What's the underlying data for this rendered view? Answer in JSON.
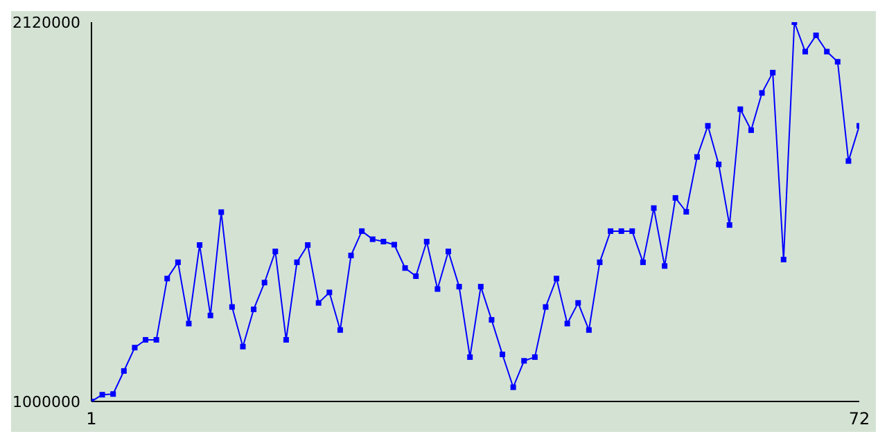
{
  "chart_data": {
    "type": "line",
    "x": [
      1,
      2,
      3,
      4,
      5,
      6,
      7,
      8,
      9,
      10,
      11,
      12,
      13,
      14,
      15,
      16,
      17,
      18,
      19,
      20,
      21,
      22,
      23,
      24,
      25,
      26,
      27,
      28,
      29,
      30,
      31,
      32,
      33,
      34,
      35,
      36,
      37,
      38,
      39,
      40,
      41,
      42,
      43,
      44,
      45,
      46,
      47,
      48,
      49,
      50,
      51,
      52,
      53,
      54,
      55,
      56,
      57,
      58,
      59,
      60,
      61,
      62,
      63,
      64,
      65,
      66,
      67,
      68,
      69,
      70,
      71,
      72
    ],
    "series": [
      {
        "color": "#0000ff",
        "values": [
          1000000,
          1020000,
          1022000,
          1090000,
          1159000,
          1182000,
          1182000,
          1363000,
          1411000,
          1230000,
          1462000,
          1254000,
          1559000,
          1279000,
          1162000,
          1272000,
          1351000,
          1443000,
          1182000,
          1411000,
          1462000,
          1291000,
          1322000,
          1211000,
          1431000,
          1503000,
          1479000,
          1472000,
          1463000,
          1394000,
          1370000,
          1472000,
          1332000,
          1443000,
          1339000,
          1131000,
          1339000,
          1241000,
          1139000,
          1042000,
          1120000,
          1131000,
          1279000,
          1363000,
          1230000,
          1291000,
          1211000,
          1411000,
          1503000,
          1503000,
          1503000,
          1411000,
          1571000,
          1400000,
          1601000,
          1560000,
          1722000,
          1814000,
          1700000,
          1521000,
          1863000,
          1801000,
          1911000,
          1971000,
          1419000,
          2120000,
          2033000,
          2081000,
          2033000,
          2003000,
          1710000,
          1814000
        ]
      }
    ],
    "xlim": [
      1,
      72
    ],
    "xticks": [
      1,
      72
    ],
    "ylim": [
      1000000,
      2120000
    ],
    "yticks": [
      1000000,
      2120000
    ],
    "grid": false,
    "marker": "square",
    "line_style": "solid"
  }
}
